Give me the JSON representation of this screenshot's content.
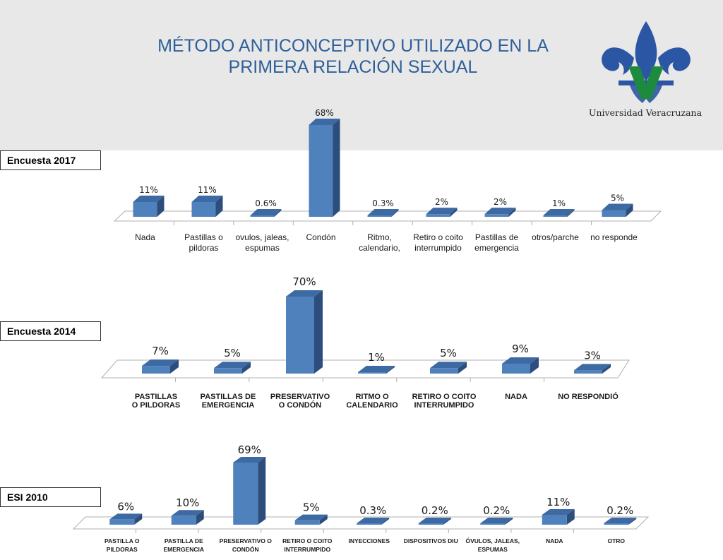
{
  "title": "MÉTODO  ANTICONCEPTIVO  UTILIZADO EN LA\nPRIMERA  RELACIÓN SEXUAL",
  "logo": {
    "caption": "Universidad Veracruzana",
    "colors": {
      "blue": "#2b56a3",
      "green": "#1d8a3e"
    }
  },
  "colors": {
    "bar_front": "#4f81bd",
    "bar_top": "#3d6aa3",
    "bar_side": "#2d4e7c",
    "header_bg": "#e8e8e8",
    "title": "#2e5f9a"
  },
  "chart_data": [
    {
      "type": "bar",
      "survey_label": "Encuesta  2017",
      "categories": [
        "Nada",
        "Pastillas o\npildoras",
        "ovulos, jaleas,\nespumas",
        "Condón",
        "Ritmo,\ncalendario,",
        "Retiro o coito\ninterrumpido",
        "Pastillas de\nemergencia",
        "otros/parche",
        "no responde"
      ],
      "values": [
        11,
        11,
        0.6,
        68,
        0.3,
        2,
        2,
        1,
        5
      ],
      "data_labels": [
        "11%",
        "11%",
        "0.6%",
        "68%",
        "0.3%",
        "2%",
        "2%",
        "1%",
        "5%"
      ],
      "ylim": [
        0,
        70
      ]
    },
    {
      "type": "bar",
      "survey_label": "Encuesta  2014",
      "categories": [
        "PASTILLAS\nO PILDORAS",
        "PASTILLAS DE\nEMERGENCIA",
        "PRESERVATIVO\nO CONDÓN",
        "RITMO O\nCALENDARIO",
        "RETIRO  O  COITO\nINTERRUMPIDO",
        "NADA",
        "NO RESPONDIÓ"
      ],
      "values": [
        7,
        5,
        70,
        1,
        5,
        9,
        3
      ],
      "data_labels": [
        "7%",
        "5%",
        "70%",
        "1%",
        "5%",
        "9%",
        "3%"
      ],
      "ylim": [
        0,
        70
      ]
    },
    {
      "type": "bar",
      "survey_label": "ESI 2010",
      "categories": [
        "PASTILLA  O\nPILDORAS",
        "PASTILLA DE\nEMERGENCIA",
        "PRESERVATIVO O\nCONDÓN",
        "RETIRO O COITO\nINTERRUMPIDO",
        "INYECCIONES",
        "DISPOSITIVOS DIU",
        "ÓVULOS, JALEAS,\nESPUMAS",
        "NADA",
        "OTRO"
      ],
      "values": [
        6,
        10,
        69,
        5,
        0.3,
        0.2,
        0.2,
        11,
        0.2
      ],
      "data_labels": [
        "6%",
        "10%",
        "69%",
        "5%",
        "0.3%",
        "0.2%",
        "0.2%",
        "11%",
        "0.2%"
      ],
      "ylim": [
        0,
        70
      ]
    }
  ]
}
